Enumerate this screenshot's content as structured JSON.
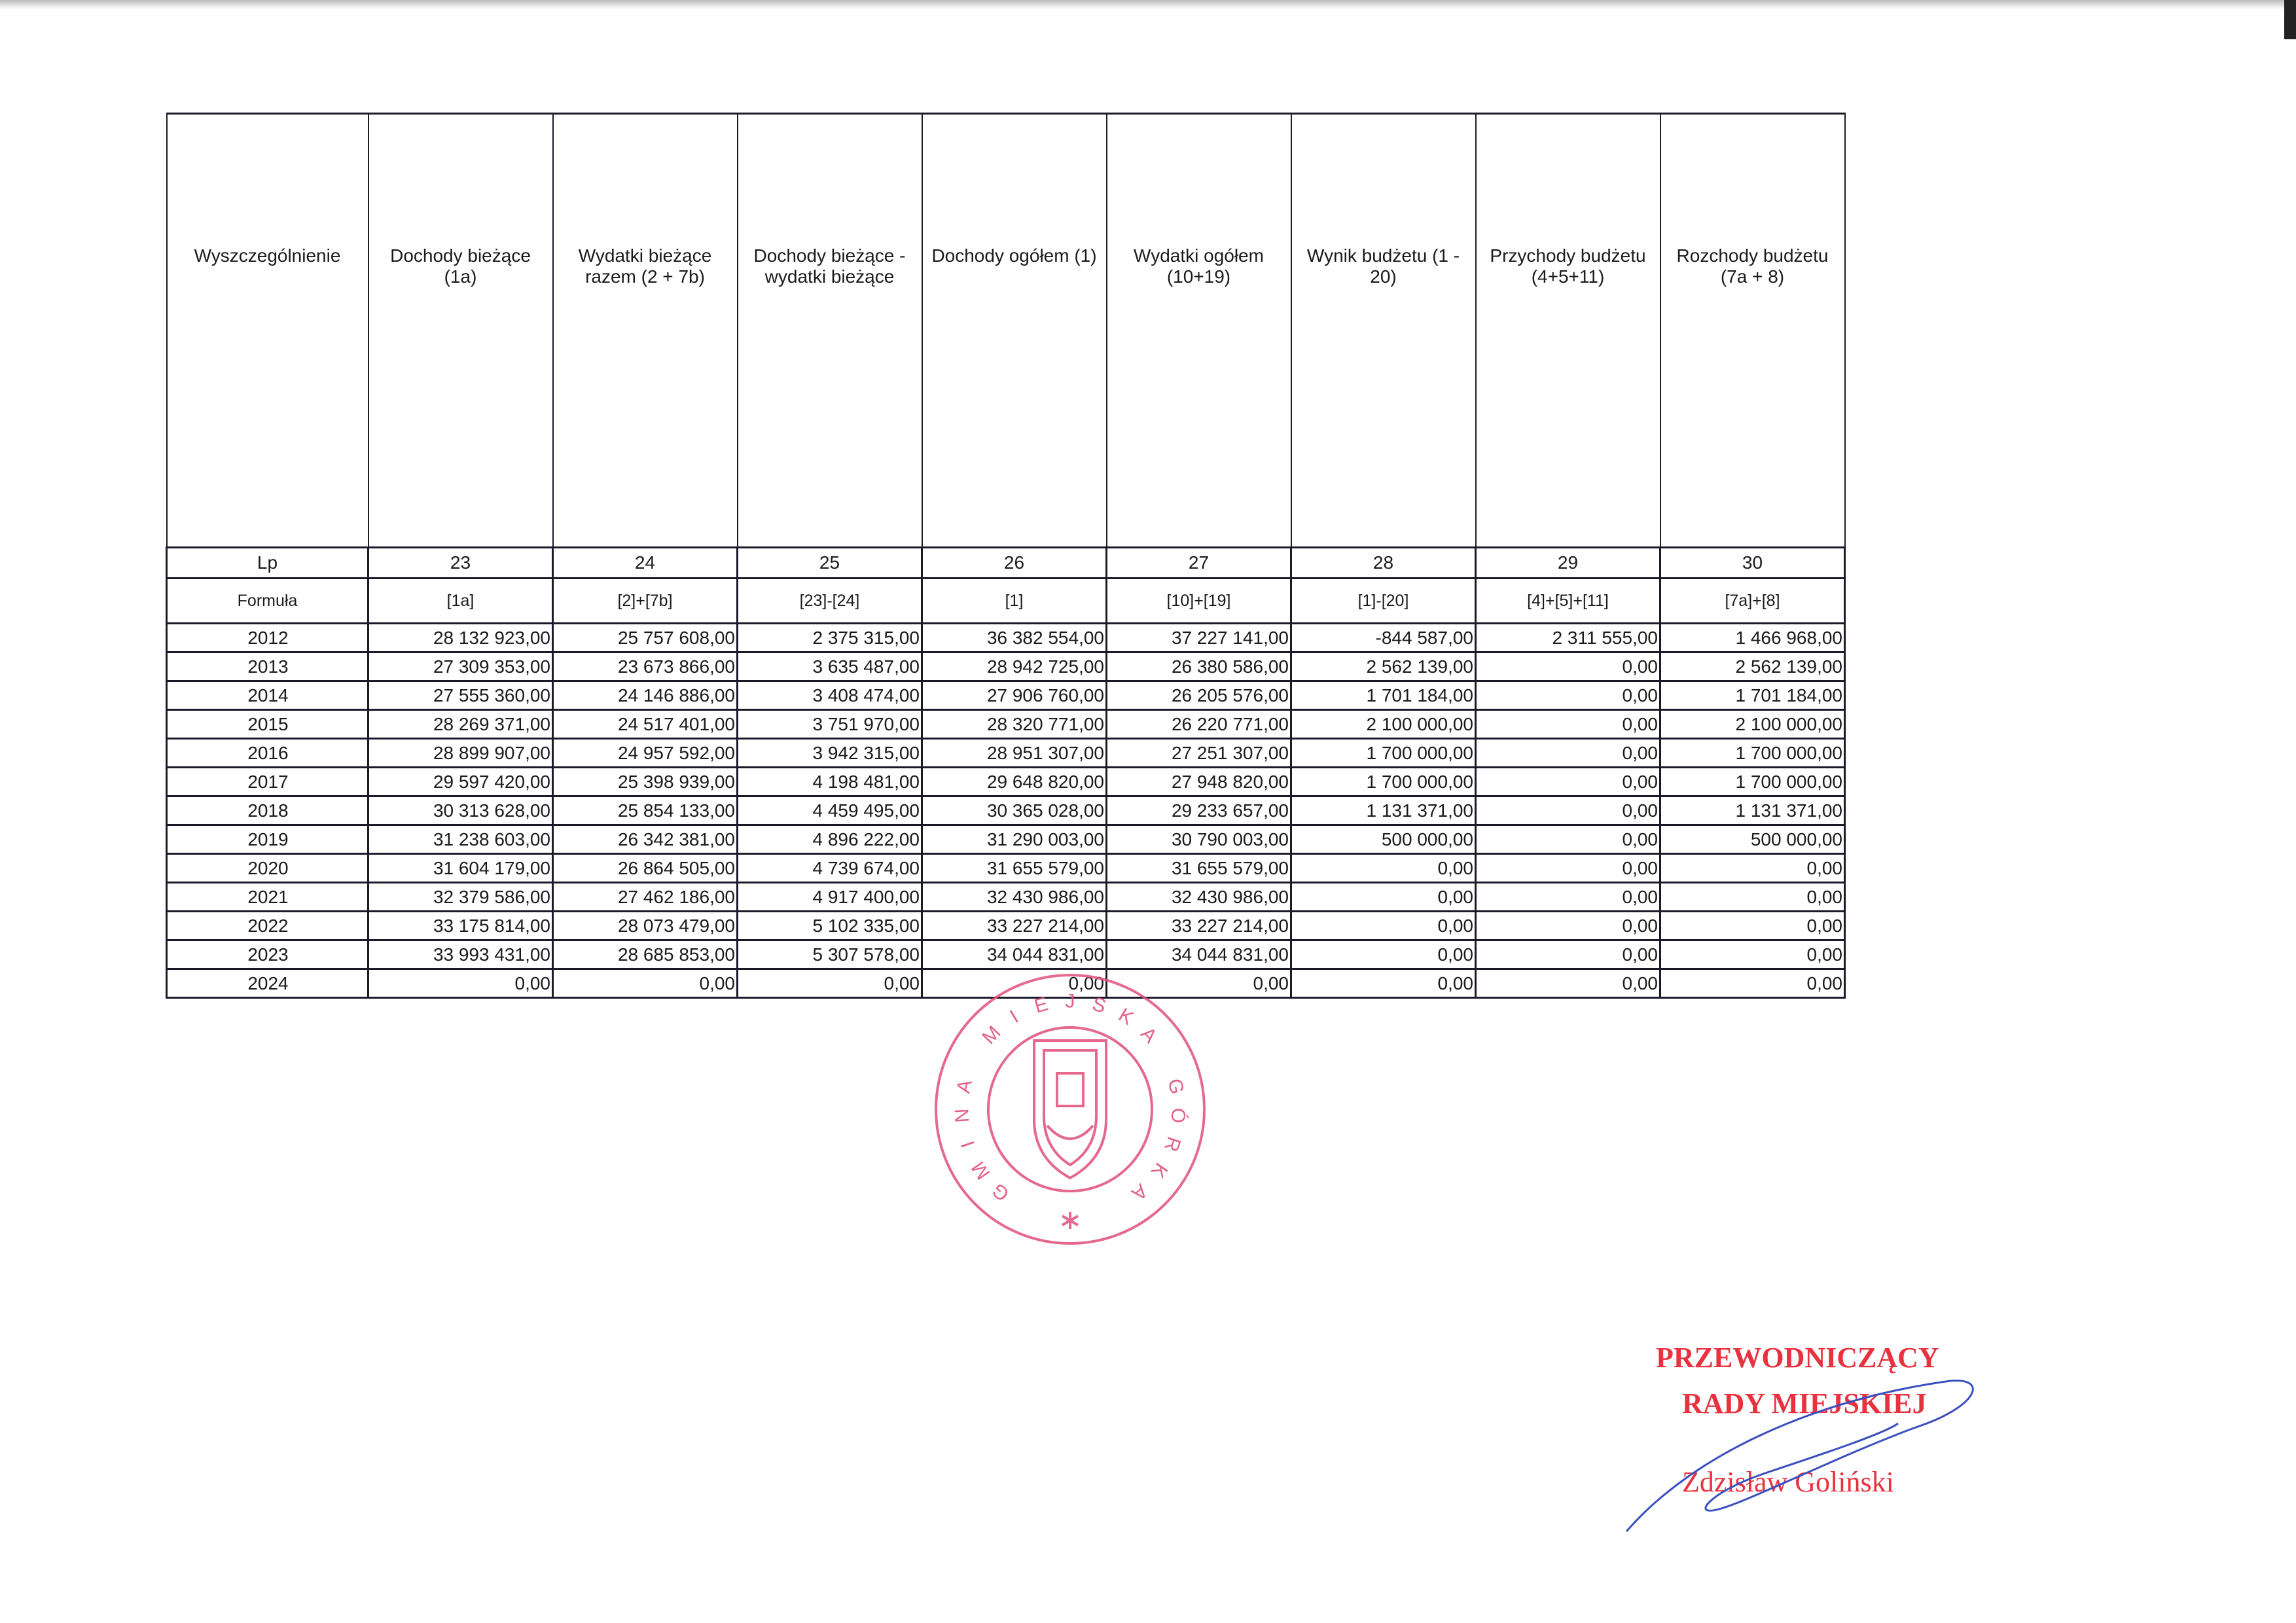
{
  "table": {
    "headers": [
      "Wyszczególnienie",
      "Dochody bieżące (1a)",
      "Wydatki bieżące razem (2 + 7b)",
      "Dochody bieżące - wydatki bieżące",
      "Dochody ogółem (1)",
      "Wydatki ogółem (10+19)",
      "Wynik budżetu (1 - 20)",
      "Przychody budżetu (4+5+11)",
      "Rozchody budżetu (7a + 8)"
    ],
    "lp": [
      "Lp",
      "23",
      "24",
      "25",
      "26",
      "27",
      "28",
      "29",
      "30"
    ],
    "formula": [
      "Formuła",
      "[1a]",
      "[2]+[7b]",
      "[23]-[24]",
      "[1]",
      "[10]+[19]",
      "[1]-[20]",
      "[4]+[5]+[11]",
      "[7a]+[8]"
    ],
    "rows": [
      [
        "2012",
        "28 132 923,00",
        "25 757 608,00",
        "2 375 315,00",
        "36 382 554,00",
        "37 227 141,00",
        "-844 587,00",
        "2 311 555,00",
        "1 466 968,00"
      ],
      [
        "2013",
        "27 309 353,00",
        "23 673 866,00",
        "3 635 487,00",
        "28 942 725,00",
        "26 380 586,00",
        "2 562 139,00",
        "0,00",
        "2 562 139,00"
      ],
      [
        "2014",
        "27 555 360,00",
        "24 146 886,00",
        "3 408 474,00",
        "27 906 760,00",
        "26 205 576,00",
        "1 701 184,00",
        "0,00",
        "1 701 184,00"
      ],
      [
        "2015",
        "28 269 371,00",
        "24 517 401,00",
        "3 751 970,00",
        "28 320 771,00",
        "26 220 771,00",
        "2 100 000,00",
        "0,00",
        "2 100 000,00"
      ],
      [
        "2016",
        "28 899 907,00",
        "24 957 592,00",
        "3 942 315,00",
        "28 951 307,00",
        "27 251 307,00",
        "1 700 000,00",
        "0,00",
        "1 700 000,00"
      ],
      [
        "2017",
        "29 597 420,00",
        "25 398 939,00",
        "4 198 481,00",
        "29 648 820,00",
        "27 948 820,00",
        "1 700 000,00",
        "0,00",
        "1 700 000,00"
      ],
      [
        "2018",
        "30 313 628,00",
        "25 854 133,00",
        "4 459 495,00",
        "30 365 028,00",
        "29 233 657,00",
        "1 131 371,00",
        "0,00",
        "1 131 371,00"
      ],
      [
        "2019",
        "31 238 603,00",
        "26 342 381,00",
        "4 896 222,00",
        "31 290 003,00",
        "30 790 003,00",
        "500 000,00",
        "0,00",
        "500 000,00"
      ],
      [
        "2020",
        "31 604 179,00",
        "26 864 505,00",
        "4 739 674,00",
        "31 655 579,00",
        "31 655 579,00",
        "0,00",
        "0,00",
        "0,00"
      ],
      [
        "2021",
        "32 379 586,00",
        "27 462 186,00",
        "4 917 400,00",
        "32 430 986,00",
        "32 430 986,00",
        "0,00",
        "0,00",
        "0,00"
      ],
      [
        "2022",
        "33 175 814,00",
        "28 073 479,00",
        "5 102 335,00",
        "33 227 214,00",
        "33 227 214,00",
        "0,00",
        "0,00",
        "0,00"
      ],
      [
        "2023",
        "33 993 431,00",
        "28 685 853,00",
        "5 307 578,00",
        "34 044 831,00",
        "34 044 831,00",
        "0,00",
        "0,00",
        "0,00"
      ],
      [
        "2024",
        "0,00",
        "0,00",
        "0,00",
        "0,00",
        "0,00",
        "0,00",
        "0,00",
        "0,00"
      ]
    ]
  },
  "stamp": {
    "text": "GMINA MIEJSKA GÓRKA",
    "color": "#e0507a"
  },
  "signature": {
    "title_line1": "PRZEWODNICZĄCY",
    "title_line2": "RADY MIEJSKIEJ",
    "name": "Zdzisław Goliński",
    "stamp_color": "#e8323f",
    "ink_color": "#3a4fc0"
  }
}
